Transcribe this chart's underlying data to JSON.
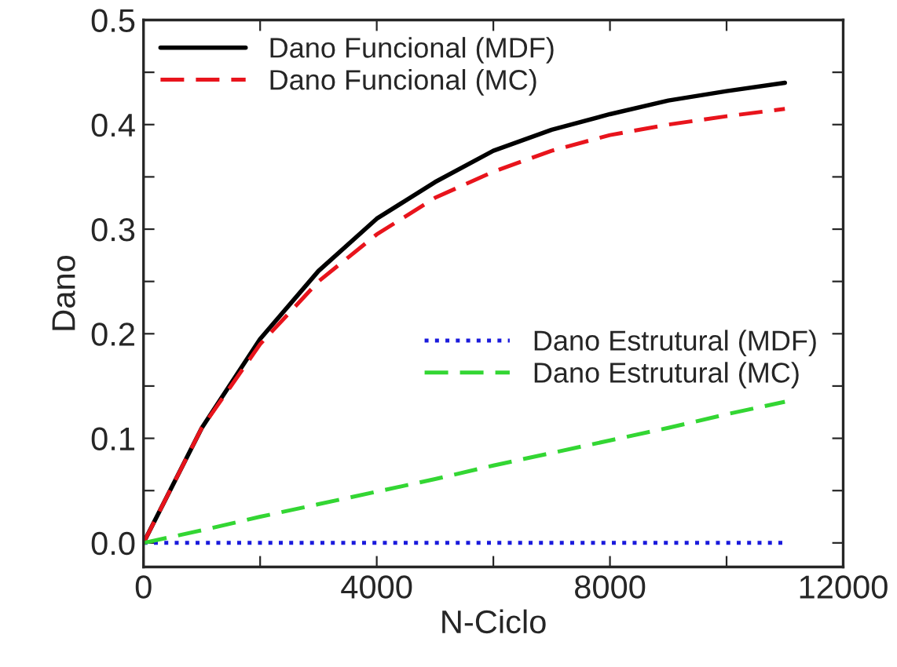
{
  "chart_data": {
    "type": "line",
    "xlabel": "N-Ciclo",
    "ylabel": "Dano",
    "x": [
      0,
      1000,
      2000,
      3000,
      4000,
      5000,
      6000,
      7000,
      8000,
      9000,
      10000,
      11000
    ],
    "series": [
      {
        "name": "Dano Funcional (MDF)",
        "color": "#000000",
        "line_style": "solid",
        "values": [
          0,
          0.11,
          0.195,
          0.26,
          0.31,
          0.345,
          0.375,
          0.395,
          0.41,
          0.423,
          0.432,
          0.44
        ]
      },
      {
        "name": "Dano Funcional (MC)",
        "color": "#e8141c",
        "line_style": "dashed",
        "values": [
          0,
          0.11,
          0.19,
          0.25,
          0.295,
          0.33,
          0.355,
          0.375,
          0.39,
          0.4,
          0.408,
          0.415
        ]
      },
      {
        "name": "Dano Estrutural (MDF)",
        "color": "#1a1adc",
        "line_style": "dotted",
        "values": [
          0,
          0,
          0,
          0,
          0,
          0,
          0,
          0,
          0,
          0,
          0,
          0
        ]
      },
      {
        "name": "Dano Estrutural (MC)",
        "color": "#33d633",
        "line_style": "dashed",
        "values": [
          0,
          0.012,
          0.025,
          0.037,
          0.049,
          0.061,
          0.074,
          0.086,
          0.098,
          0.11,
          0.123,
          0.135
        ]
      }
    ],
    "xlim": [
      0,
      12000
    ],
    "ylim": [
      -0.023,
      0.5
    ],
    "xticks": [
      0,
      {
        "value": 2000,
        "label": null
      },
      4000,
      {
        "value": 6000,
        "label": null
      },
      8000,
      {
        "value": 10000,
        "label": null
      },
      12000
    ],
    "yticks": [
      {
        "value": 0,
        "label": "0.0"
      },
      {
        "value": 0.05,
        "label": null
      },
      0.1,
      {
        "value": 0.15,
        "label": null
      },
      0.2,
      {
        "value": 0.25,
        "label": null
      },
      0.3,
      {
        "value": 0.35,
        "label": null
      },
      0.4,
      {
        "value": 0.45,
        "label": null
      },
      0.5
    ],
    "grid": false,
    "legend": "top left",
    "marker": "none"
  }
}
